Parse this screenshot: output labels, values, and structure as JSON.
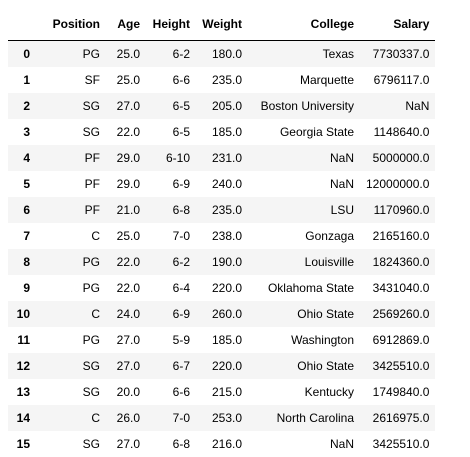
{
  "table": {
    "columns": [
      "",
      "Position",
      "Age",
      "Height",
      "Weight",
      "College",
      "Salary"
    ],
    "rows": [
      [
        "0",
        "PG",
        "25.0",
        "6-2",
        "180.0",
        "Texas",
        "7730337.0"
      ],
      [
        "1",
        "SF",
        "25.0",
        "6-6",
        "235.0",
        "Marquette",
        "6796117.0"
      ],
      [
        "2",
        "SG",
        "27.0",
        "6-5",
        "205.0",
        "Boston University",
        "NaN"
      ],
      [
        "3",
        "SG",
        "22.0",
        "6-5",
        "185.0",
        "Georgia State",
        "1148640.0"
      ],
      [
        "4",
        "PF",
        "29.0",
        "6-10",
        "231.0",
        "NaN",
        "5000000.0"
      ],
      [
        "5",
        "PF",
        "29.0",
        "6-9",
        "240.0",
        "NaN",
        "12000000.0"
      ],
      [
        "6",
        "PF",
        "21.0",
        "6-8",
        "235.0",
        "LSU",
        "1170960.0"
      ],
      [
        "7",
        "C",
        "25.0",
        "7-0",
        "238.0",
        "Gonzaga",
        "2165160.0"
      ],
      [
        "8",
        "PG",
        "22.0",
        "6-2",
        "190.0",
        "Louisville",
        "1824360.0"
      ],
      [
        "9",
        "PG",
        "22.0",
        "6-4",
        "220.0",
        "Oklahoma State",
        "3431040.0"
      ],
      [
        "10",
        "C",
        "24.0",
        "6-9",
        "260.0",
        "Ohio State",
        "2569260.0"
      ],
      [
        "11",
        "PG",
        "27.0",
        "5-9",
        "185.0",
        "Washington",
        "6912869.0"
      ],
      [
        "12",
        "SG",
        "27.0",
        "6-7",
        "220.0",
        "Ohio State",
        "3425510.0"
      ],
      [
        "13",
        "SG",
        "20.0",
        "6-6",
        "215.0",
        "Kentucky",
        "1749840.0"
      ],
      [
        "14",
        "C",
        "26.0",
        "7-0",
        "253.0",
        "North Carolina",
        "2616975.0"
      ],
      [
        "15",
        "SG",
        "27.0",
        "6-8",
        "216.0",
        "NaN",
        "3425510.0"
      ]
    ]
  }
}
